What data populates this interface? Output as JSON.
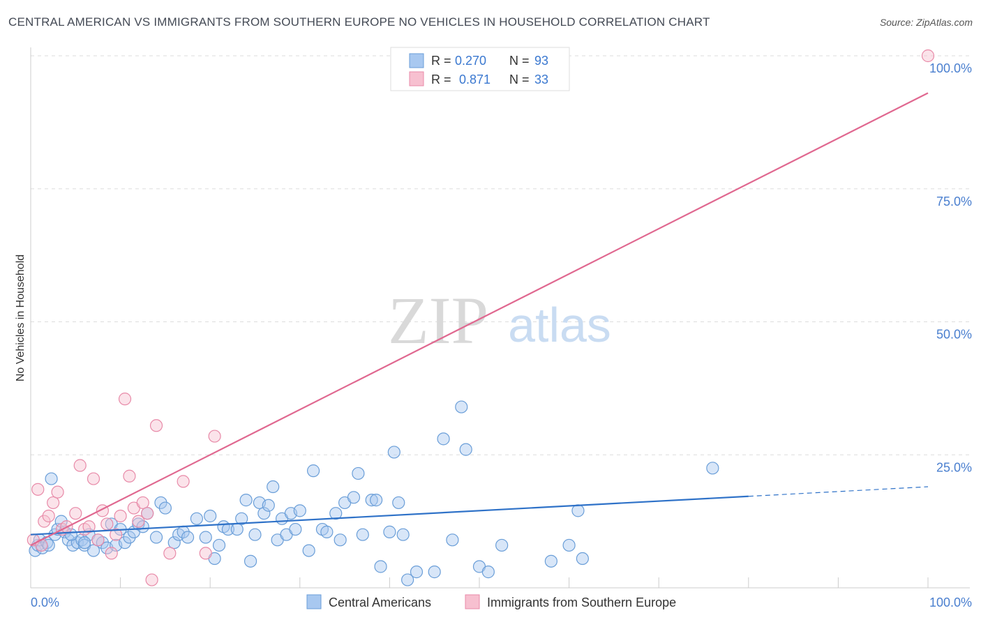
{
  "header": {
    "title": "CENTRAL AMERICAN VS IMMIGRANTS FROM SOUTHERN EUROPE NO VEHICLES IN HOUSEHOLD CORRELATION CHART",
    "source": "Source: ZipAtlas.com"
  },
  "watermark": {
    "zip": "ZIP",
    "atlas": "atlas"
  },
  "legend_top": {
    "rows": [
      {
        "r_label": "R =",
        "r_value": "0.270",
        "n_label": "N =",
        "n_value": "93",
        "color": "#a8c8f0"
      },
      {
        "r_label": "R =",
        "r_value": "0.871",
        "n_label": "N =",
        "n_value": "33",
        "color": "#f5b8cb"
      }
    ]
  },
  "colors": {
    "blue_fill": "#a8c8f0",
    "blue_stroke": "#6a9ed8",
    "blue_line": "#2f72c8",
    "pink_fill": "#f7c0d0",
    "pink_stroke": "#e88aa8",
    "pink_line": "#e06890",
    "axis_text": "#4a7fcf",
    "grid": "#dddddd"
  },
  "chart_data": {
    "type": "scatter",
    "title": "CENTRAL AMERICAN VS IMMIGRANTS FROM SOUTHERN EUROPE NO VEHICLES IN HOUSEHOLD CORRELATION CHART",
    "xlabel": "",
    "ylabel": "No Vehicles in Household",
    "xlim": [
      0,
      100
    ],
    "ylim": [
      0,
      100
    ],
    "x_tick_labels": [
      "0.0%",
      "100.0%"
    ],
    "y_tick_labels": [
      "25.0%",
      "50.0%",
      "75.0%",
      "100.0%"
    ],
    "y_ticks": [
      25,
      50,
      75,
      100
    ],
    "legend_bottom": [
      "Central Americans",
      "Immigrants from Southern Europe"
    ],
    "series": [
      {
        "name": "Central Americans",
        "R": 0.27,
        "N": 93,
        "trend": {
          "x0": 0,
          "y0": 10.0,
          "x1": 80,
          "y1": 17.2,
          "dash_x1": 100,
          "dash_y1": 19.0
        },
        "points": [
          [
            0.5,
            7
          ],
          [
            0.8,
            8
          ],
          [
            1.0,
            9
          ],
          [
            1.3,
            7.5
          ],
          [
            1.8,
            8.5
          ],
          [
            2.3,
            20.5
          ],
          [
            2.7,
            10
          ],
          [
            3.0,
            11
          ],
          [
            3.4,
            12.5
          ],
          [
            3.8,
            10.5
          ],
          [
            4.2,
            9
          ],
          [
            4.7,
            8
          ],
          [
            5.2,
            8.5
          ],
          [
            5.7,
            9
          ],
          [
            6.0,
            8
          ],
          [
            6.5,
            10
          ],
          [
            7.0,
            7
          ],
          [
            7.5,
            9
          ],
          [
            8.0,
            8.5
          ],
          [
            8.5,
            7.5
          ],
          [
            9.0,
            12
          ],
          [
            9.5,
            8
          ],
          [
            10.0,
            11
          ],
          [
            10.5,
            8.5
          ],
          [
            11.0,
            9.5
          ],
          [
            11.5,
            10.5
          ],
          [
            12.0,
            12
          ],
          [
            13.0,
            14
          ],
          [
            14.0,
            9.5
          ],
          [
            14.5,
            16
          ],
          [
            15.0,
            15
          ],
          [
            16.0,
            8.5
          ],
          [
            16.5,
            10
          ],
          [
            17.0,
            10.5
          ],
          [
            17.5,
            9.5
          ],
          [
            18.5,
            13
          ],
          [
            19.5,
            9.5
          ],
          [
            20.0,
            13.5
          ],
          [
            20.5,
            5.5
          ],
          [
            21.0,
            8
          ],
          [
            21.5,
            11.5
          ],
          [
            22.0,
            11
          ],
          [
            23.0,
            11
          ],
          [
            23.5,
            13
          ],
          [
            24.0,
            16.5
          ],
          [
            24.5,
            5
          ],
          [
            25.0,
            10
          ],
          [
            25.5,
            16
          ],
          [
            26.0,
            14
          ],
          [
            26.5,
            15.5
          ],
          [
            27.0,
            19
          ],
          [
            27.5,
            9
          ],
          [
            28.0,
            13
          ],
          [
            28.5,
            10
          ],
          [
            29.0,
            14
          ],
          [
            29.5,
            11
          ],
          [
            30.0,
            14.5
          ],
          [
            31.0,
            7
          ],
          [
            31.5,
            22
          ],
          [
            32.5,
            11
          ],
          [
            33.0,
            10.5
          ],
          [
            34.0,
            14
          ],
          [
            34.5,
            9
          ],
          [
            35.0,
            16
          ],
          [
            36.0,
            17
          ],
          [
            36.5,
            21.5
          ],
          [
            37.0,
            10
          ],
          [
            38.0,
            16.5
          ],
          [
            38.5,
            16.5
          ],
          [
            39.0,
            4
          ],
          [
            40.0,
            10.5
          ],
          [
            40.5,
            25.5
          ],
          [
            41.0,
            16
          ],
          [
            41.5,
            10
          ],
          [
            42.0,
            1.5
          ],
          [
            43.0,
            3
          ],
          [
            45.0,
            3
          ],
          [
            46.0,
            28
          ],
          [
            47.0,
            9
          ],
          [
            48.0,
            34
          ],
          [
            48.5,
            26
          ],
          [
            50.0,
            4
          ],
          [
            51.0,
            3
          ],
          [
            52.5,
            8
          ],
          [
            58.0,
            5
          ],
          [
            60.0,
            8
          ],
          [
            61.0,
            14.5
          ],
          [
            61.5,
            5.5
          ],
          [
            76.0,
            22.5
          ],
          [
            6.0,
            8.5
          ],
          [
            2.0,
            8
          ],
          [
            4.5,
            10
          ],
          [
            12.5,
            11.5
          ]
        ]
      },
      {
        "name": "Immigrants from Southern Europe",
        "R": 0.871,
        "N": 33,
        "trend": {
          "x0": 0,
          "y0": 8.0,
          "x1": 100,
          "y1": 93.0
        },
        "points": [
          [
            0.3,
            9
          ],
          [
            0.8,
            18.5
          ],
          [
            1.2,
            8
          ],
          [
            1.5,
            12.5
          ],
          [
            2.0,
            13.5
          ],
          [
            2.5,
            16
          ],
          [
            3.0,
            18
          ],
          [
            3.5,
            11
          ],
          [
            4.0,
            11.5
          ],
          [
            5.0,
            14
          ],
          [
            5.5,
            23
          ],
          [
            6.0,
            11
          ],
          [
            6.5,
            11.5
          ],
          [
            7.0,
            20.5
          ],
          [
            7.5,
            9
          ],
          [
            8.0,
            14.5
          ],
          [
            8.5,
            12
          ],
          [
            9.0,
            6.5
          ],
          [
            9.5,
            10
          ],
          [
            10.0,
            13.5
          ],
          [
            10.5,
            35.5
          ],
          [
            11.0,
            21
          ],
          [
            11.5,
            15
          ],
          [
            12.0,
            12.5
          ],
          [
            12.5,
            16
          ],
          [
            13.0,
            14
          ],
          [
            13.5,
            1.5
          ],
          [
            14.0,
            30.5
          ],
          [
            15.5,
            6.5
          ],
          [
            17.0,
            20
          ],
          [
            19.5,
            6.5
          ],
          [
            20.5,
            28.5
          ],
          [
            100,
            100
          ]
        ]
      }
    ]
  }
}
